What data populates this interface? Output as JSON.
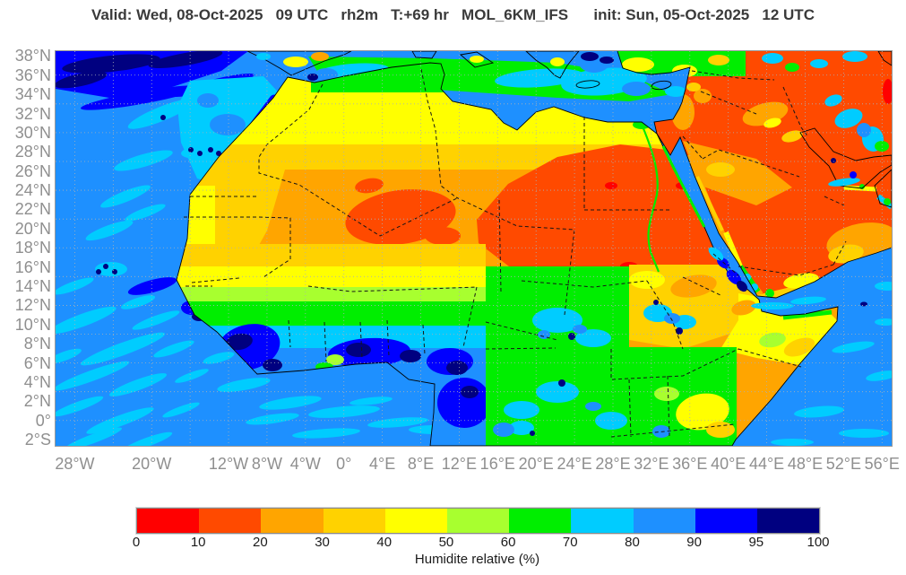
{
  "title": "Valid: Wed, 08-Oct-2025   09 UTC   rh2m   T:+69 hr   MOL_6KM_IFS      init: Sun, 05-Oct-2025   12 UTC",
  "map": {
    "lat_ticks": [
      {
        "label": "38°N",
        "lat": 38
      },
      {
        "label": "36°N",
        "lat": 36
      },
      {
        "label": "34°N",
        "lat": 34
      },
      {
        "label": "32°N",
        "lat": 32
      },
      {
        "label": "30°N",
        "lat": 30
      },
      {
        "label": "28°N",
        "lat": 28
      },
      {
        "label": "26°N",
        "lat": 26
      },
      {
        "label": "24°N",
        "lat": 24
      },
      {
        "label": "22°N",
        "lat": 22
      },
      {
        "label": "20°N",
        "lat": 20
      },
      {
        "label": "18°N",
        "lat": 18
      },
      {
        "label": "16°N",
        "lat": 16
      },
      {
        "label": "14°N",
        "lat": 14
      },
      {
        "label": "12°N",
        "lat": 12
      },
      {
        "label": "10°N",
        "lat": 10
      },
      {
        "label": "8°N",
        "lat": 8
      },
      {
        "label": "6°N",
        "lat": 6
      },
      {
        "label": "4°N",
        "lat": 4
      },
      {
        "label": "2°N",
        "lat": 2
      },
      {
        "label": "0°",
        "lat": 0
      },
      {
        "label": "2°S",
        "lat": -2
      }
    ],
    "lon_ticks": [
      {
        "label": "28°W",
        "lon": -28
      },
      {
        "label": "20°W",
        "lon": -20
      },
      {
        "label": "12°W",
        "lon": -12
      },
      {
        "label": "8°W",
        "lon": -8
      },
      {
        "label": "4°W",
        "lon": -4
      },
      {
        "label": "0°",
        "lon": 0
      },
      {
        "label": "4°E",
        "lon": 4
      },
      {
        "label": "8°E",
        "lon": 8
      },
      {
        "label": "12°E",
        "lon": 12
      },
      {
        "label": "16°E",
        "lon": 16
      },
      {
        "label": "20°E",
        "lon": 20
      },
      {
        "label": "24°E",
        "lon": 24
      },
      {
        "label": "28°E",
        "lon": 28
      },
      {
        "label": "32°E",
        "lon": 32
      },
      {
        "label": "36°E",
        "lon": 36
      },
      {
        "label": "40°E",
        "lon": 40
      },
      {
        "label": "44°E",
        "lon": 44
      },
      {
        "label": "48°E",
        "lon": 48
      },
      {
        "label": "52°E",
        "lon": 52
      },
      {
        "label": "56°E",
        "lon": 56
      }
    ],
    "grid": {
      "lon_step_deg": 4,
      "lat_step_deg": 3
    }
  },
  "colorbar": {
    "title": "Humidite relative (%)",
    "tick_labels": [
      "0",
      "10",
      "20",
      "30",
      "40",
      "50",
      "60",
      "70",
      "80",
      "90",
      "95",
      "100"
    ],
    "colors": [
      "#ff0000",
      "#ff4a00",
      "#ffa500",
      "#ffd200",
      "#ffff00",
      "#a8ff2f",
      "#00ee00",
      "#00ccff",
      "#1e90ff",
      "#0000ff",
      "#000080"
    ]
  },
  "chart_data": {
    "type": "heatmap",
    "variable": "rh2m",
    "units": "%",
    "legend_label": "Humidite relative (%)",
    "levels": [
      0,
      10,
      20,
      30,
      40,
      50,
      60,
      70,
      80,
      90,
      95,
      100
    ],
    "colors": [
      "#ff0000",
      "#ff4a00",
      "#ffa500",
      "#ffd200",
      "#ffff00",
      "#a8ff2f",
      "#00ee00",
      "#00ccff",
      "#1e90ff",
      "#0000ff",
      "#000080"
    ],
    "lon_range_deg": [
      -30,
      57
    ],
    "lat_range_deg": [
      -2.6,
      38.5
    ],
    "region_values_percent": {
      "sahara_core_algeria_sudan_chad": "10-20",
      "sahara_margins": "20-40",
      "sahel_band": "30-50",
      "north_african_mediterranean_coast": "50-70",
      "mediterranean_sea": "60-90",
      "guinea_coast_west_africa": "90-100",
      "gulf_of_guinea_ocean": "80-90",
      "atlantic_ocean": "70-90",
      "nw_atlantic_and_morocco_upwelling": "90-100",
      "arabian_peninsula_interior": "10-20",
      "red_sea": "70-95",
      "persian_gulf": "70-90",
      "ethiopian_highlands": "70-100",
      "east_africa": "50-80",
      "horn_of_africa_somalia": "30-60"
    }
  }
}
